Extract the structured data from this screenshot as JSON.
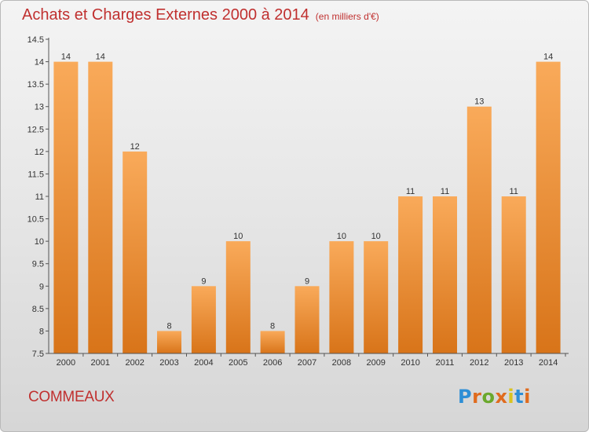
{
  "header": {
    "title": "Achats et Charges Externes 2000 à 2014",
    "subtitle": "(en milliers d'€)"
  },
  "footer": {
    "commune": "COMMEAUX",
    "logo_text": "Proxiti"
  },
  "colors": {
    "title": "#c0302f",
    "bar_top": "#f9aa5a",
    "bar_bottom": "#d87419",
    "logo": [
      "#2d8ed6",
      "#e06b1e",
      "#6aa82c",
      "#e06b1e",
      "#d9c21f",
      "#2d8ed6",
      "#e06b1e"
    ]
  },
  "chart_data": {
    "type": "bar",
    "title": "Achats et Charges Externes 2000 à 2014",
    "subtitle": "(en milliers d'€)",
    "categories": [
      "2000",
      "2001",
      "2002",
      "2003",
      "2004",
      "2005",
      "2006",
      "2007",
      "2008",
      "2009",
      "2010",
      "2011",
      "2012",
      "2013",
      "2014"
    ],
    "values": [
      14,
      14,
      12,
      8,
      9,
      10,
      8,
      9,
      10,
      10,
      11,
      11,
      13,
      11,
      14
    ],
    "ylim": [
      7.5,
      14.5
    ],
    "yticks": [
      "7.5",
      "8",
      "8.5",
      "9",
      "9.5",
      "10",
      "10.5",
      "11",
      "11.5",
      "12",
      "12.5",
      "13",
      "13.5",
      "14",
      "14.5"
    ],
    "grid": false,
    "data_labels": true
  }
}
